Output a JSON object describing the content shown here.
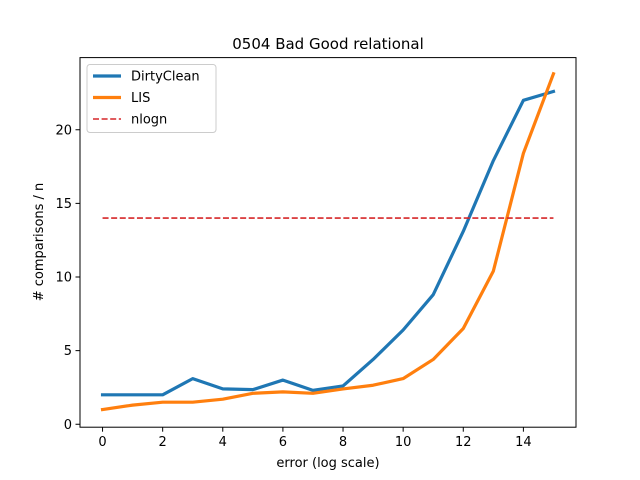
{
  "chart_data": {
    "type": "line",
    "title": "0504 Bad Good relational",
    "xlabel": "error (log scale)",
    "ylabel": "# comparisons / n",
    "xlim": [
      -0.75,
      15.75
    ],
    "ylim": [
      -0.2,
      24.9
    ],
    "xticks": [
      0,
      2,
      4,
      6,
      8,
      10,
      12,
      14
    ],
    "yticks": [
      0,
      5,
      10,
      15,
      20
    ],
    "grid": false,
    "legend_position": "top-left",
    "series": [
      {
        "name": "DirtyClean",
        "color": "#1f77b4",
        "style": "solid",
        "x": [
          0,
          1,
          2,
          3,
          4,
          5,
          6,
          7,
          8,
          9,
          10,
          11,
          12,
          13,
          14,
          15
        ],
        "values": [
          2.0,
          2.0,
          2.0,
          3.1,
          2.4,
          2.35,
          3.0,
          2.3,
          2.6,
          4.4,
          6.4,
          8.8,
          13.1,
          17.9,
          22.0,
          22.6
        ]
      },
      {
        "name": "LIS",
        "color": "#ff7f0e",
        "style": "solid",
        "x": [
          0,
          1,
          2,
          3,
          4,
          5,
          6,
          7,
          8,
          9,
          10,
          11,
          12,
          13,
          14,
          15
        ],
        "values": [
          1.0,
          1.3,
          1.5,
          1.5,
          1.7,
          2.1,
          2.2,
          2.1,
          2.4,
          2.65,
          3.1,
          4.4,
          6.5,
          10.4,
          18.4,
          23.8
        ]
      },
      {
        "name": "nlogn",
        "color": "#d62728",
        "style": "dashed",
        "x": [
          0,
          15
        ],
        "values": [
          14.0,
          14.0
        ]
      }
    ]
  }
}
